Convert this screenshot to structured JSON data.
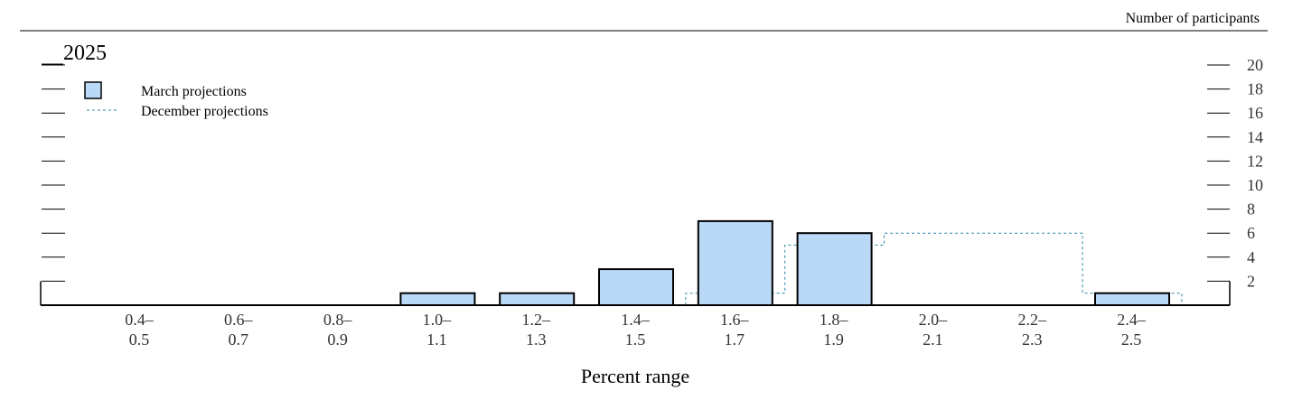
{
  "chart_data": {
    "type": "bar",
    "title": "2025",
    "ylabel": "Number of participants",
    "xlabel": "Percent range",
    "categories": [
      "0.4–0.5",
      "0.6–0.7",
      "0.8–0.9",
      "1.0–1.1",
      "1.2–1.3",
      "1.4–1.5",
      "1.6–1.7",
      "1.8–1.9",
      "2.0–2.1",
      "2.2–2.3",
      "2.4–2.5"
    ],
    "category_labels": [
      [
        "0.4–",
        "0.5"
      ],
      [
        "0.6–",
        "0.7"
      ],
      [
        "0.8–",
        "0.9"
      ],
      [
        "1.0–",
        "1.1"
      ],
      [
        "1.2–",
        "1.3"
      ],
      [
        "1.4–",
        "1.5"
      ],
      [
        "1.6–",
        "1.7"
      ],
      [
        "1.8–",
        "1.9"
      ],
      [
        "2.0–",
        "2.1"
      ],
      [
        "2.2–",
        "2.3"
      ],
      [
        "2.4–",
        "2.5"
      ]
    ],
    "series": [
      {
        "name": "March projections",
        "style": "bar",
        "values": [
          0,
          0,
          0,
          1,
          1,
          3,
          7,
          6,
          0,
          0,
          1
        ]
      },
      {
        "name": "December projections",
        "style": "dashed-step",
        "values": [
          0,
          0,
          0,
          0,
          0,
          0,
          1,
          5,
          6,
          6,
          1
        ]
      }
    ],
    "yticks": [
      2,
      4,
      6,
      8,
      10,
      12,
      14,
      16,
      18,
      20
    ],
    "ylim": [
      0,
      20
    ],
    "legend_position": "top-left",
    "colors": {
      "bar_fill": "#b9d9f7",
      "bar_stroke": "#000000",
      "december_line": "#2a86a8"
    }
  }
}
